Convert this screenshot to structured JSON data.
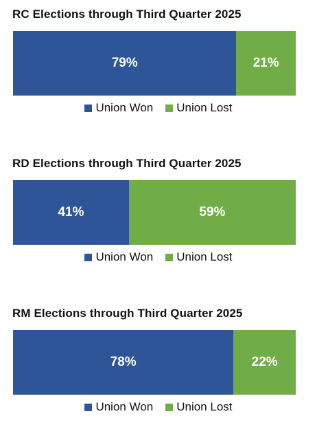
{
  "colors": {
    "won": "#2E5597",
    "lost": "#71AD47"
  },
  "legend": {
    "won": "Union Won",
    "lost": "Union Lost"
  },
  "chart_data": [
    {
      "type": "bar",
      "title": "RC Elections through Third Quarter 2025",
      "categories": [
        "Union Won",
        "Union Lost"
      ],
      "values": [
        79,
        21
      ],
      "labels": [
        "79%",
        "21%"
      ]
    },
    {
      "type": "bar",
      "title": "RD Elections through Third Quarter 2025",
      "categories": [
        "Union Won",
        "Union Lost"
      ],
      "values": [
        41,
        59
      ],
      "labels": [
        "41%",
        "59%"
      ]
    },
    {
      "type": "bar",
      "title": "RM Elections through Third Quarter 2025",
      "categories": [
        "Union Won",
        "Union Lost"
      ],
      "values": [
        78,
        22
      ],
      "labels": [
        "78%",
        "22%"
      ]
    }
  ]
}
